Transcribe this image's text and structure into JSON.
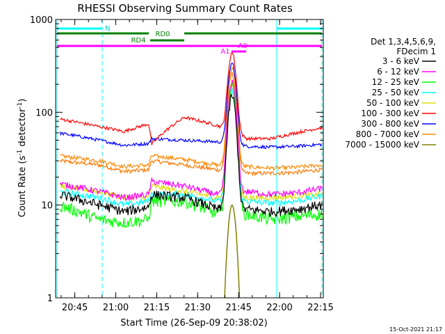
{
  "chart_data": {
    "type": "line",
    "title": "RHESSI Observing Summary Count Rates",
    "xlabel": "Start Time (26-Sep-09 20:38:02)",
    "ylabel_main": "Count Rate (s",
    "ylabel_sup1": "-1",
    "ylabel_mid": " detector",
    "ylabel_sup2": "-1",
    "ylabel_end": ")",
    "yscale": "log",
    "ylim": [
      1,
      1000
    ],
    "xlim_minutes": [
      20.633,
      22.267
    ],
    "x_ticks": [
      "20:45",
      "21:00",
      "21:15",
      "21:30",
      "21:45",
      "22:00",
      "22:15"
    ],
    "y_ticks": [
      "1",
      "10",
      "100",
      "1000"
    ],
    "legend_header": [
      "Det 1,3,4,5,6,9,",
      "FDecim 1"
    ],
    "legend_position": "right",
    "footer_date": "15-Oct-2021 21:17",
    "bar_labels": {
      "n": "N",
      "rd0": "RD0",
      "rd4": "RD4",
      "a0": "A0",
      "a1": "A1"
    },
    "series": [
      {
        "name": "3 - 6 keV",
        "color": "#000000",
        "base": [
          13,
          10,
          8.5,
          9.5,
          13,
          12,
          9,
          150,
          9,
          8.5,
          9,
          10
        ],
        "noise": 0.12
      },
      {
        "name": "6 - 12 keV",
        "color": "#ff00ff",
        "base": [
          17,
          14,
          12,
          13,
          18,
          16,
          13,
          210,
          14,
          13,
          13.5,
          15
        ],
        "noise": 0.08
      },
      {
        "name": "12 - 25 keV",
        "color": "#00ff00",
        "base": [
          10,
          7,
          6.5,
          7,
          11,
          11,
          8,
          190,
          8,
          7,
          7.5,
          8
        ],
        "noise": 0.15
      },
      {
        "name": "25 - 50 keV",
        "color": "#00ffff",
        "base": [
          14,
          12,
          10,
          11,
          13,
          13,
          11,
          170,
          11,
          10.5,
          11,
          12.5
        ],
        "noise": 0.08
      },
      {
        "name": "50 - 100 keV",
        "color": "#dddd00",
        "base": [
          16,
          14,
          12,
          12,
          16,
          14,
          12,
          210,
          12,
          12,
          12.5,
          13
        ],
        "noise": 0.07
      },
      {
        "name": "100 - 300 keV",
        "color": "#ff0000",
        "base": [
          85,
          70,
          62,
          75,
          45,
          88,
          72,
          440,
          52,
          52,
          60,
          68
        ],
        "noise": 0.04
      },
      {
        "name": "300 - 800 keV",
        "color": "#0000ff",
        "base": [
          60,
          50,
          44,
          46,
          52,
          50,
          48,
          340,
          43,
          42,
          43,
          45
        ],
        "noise": 0.04
      },
      {
        "name": "800 - 7000 keV",
        "color": "#ff8800",
        "base": [
          34,
          30,
          26,
          27,
          34,
          31,
          27,
          300,
          26,
          25,
          25.5,
          27
        ],
        "noise": 0.05
      },
      {
        "name": "7000 - 15000 keV",
        "color": "#808000",
        "base": [
          0,
          0,
          0,
          0,
          0,
          0,
          0,
          10,
          0,
          0,
          0,
          0
        ],
        "noise": 0
      },
      {
        "name": "",
        "color": "#ff7700",
        "base": [
          30,
          27,
          23,
          24,
          30,
          27,
          24,
          260,
          22,
          22,
          22.5,
          24
        ],
        "noise": 0.05
      }
    ]
  }
}
